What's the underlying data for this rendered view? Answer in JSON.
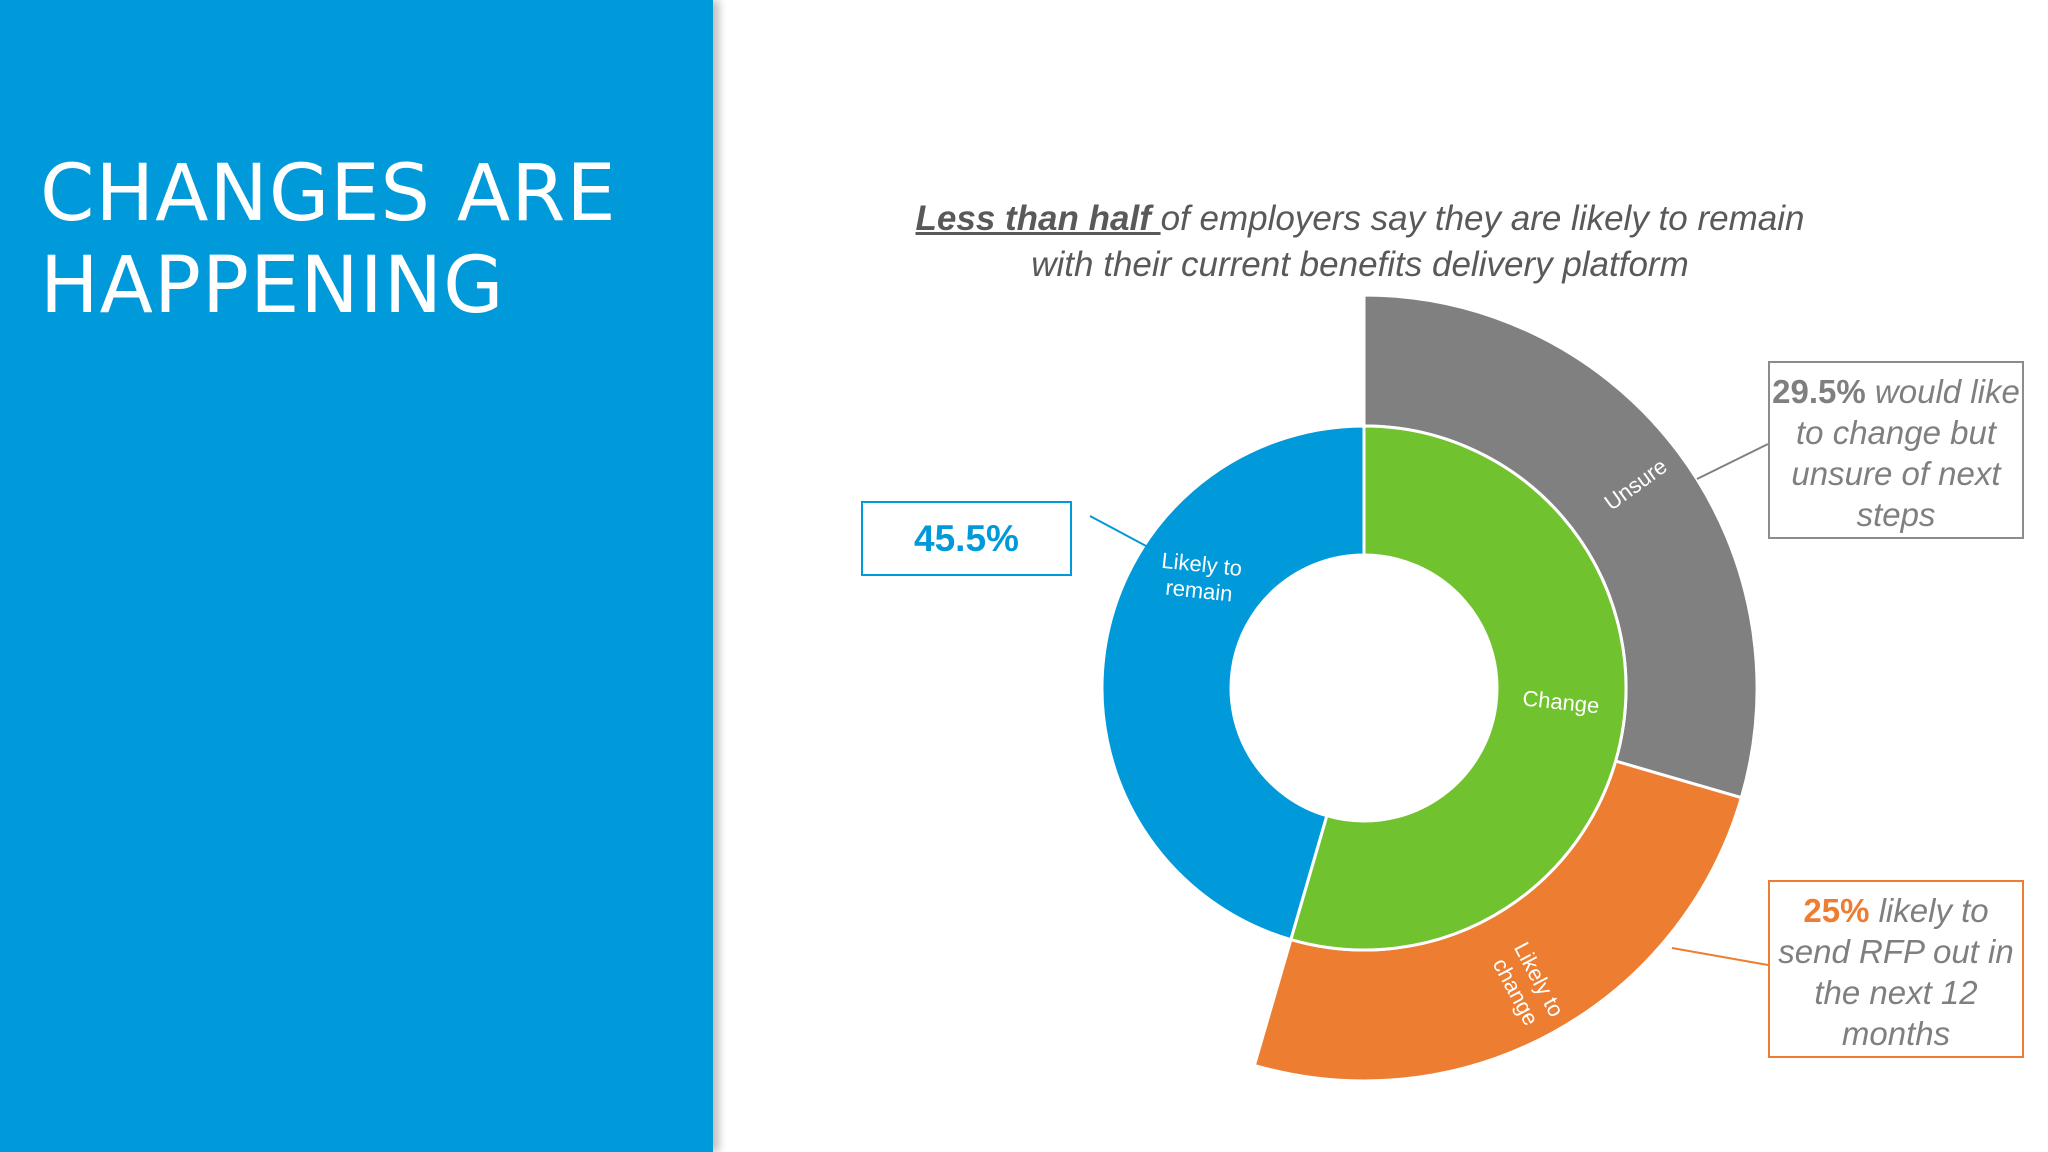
{
  "slide": {
    "title_line1": "CHANGES ARE",
    "title_line2": "HAPPENING"
  },
  "subtitle": {
    "emphasis": "Less than half ",
    "rest": "of employers say they are likely to remain with their current benefits delivery platform"
  },
  "colors": {
    "panel": "#0099D9",
    "remain": "#0099D9",
    "change": "#70C32E",
    "unsure": "#808080",
    "rfp": "#ED7D31"
  },
  "chart_data": {
    "type": "sunburst",
    "inner_ring": [
      {
        "name": "remain",
        "label_lines": [
          "Likely to",
          "remain"
        ],
        "value": 45.5
      },
      {
        "name": "change",
        "label_lines": [
          "Change"
        ],
        "value": 54.5
      }
    ],
    "outer_ring": [
      {
        "name": "unsure",
        "parent": "change",
        "label_lines": [
          "Unsure"
        ],
        "value": 29.5
      },
      {
        "name": "rfp",
        "parent": "change",
        "label_lines": [
          "Likely to",
          "change"
        ],
        "value": 25
      }
    ]
  },
  "callouts": {
    "remain": {
      "pct": "45.5%"
    },
    "unsure": {
      "pct": "29.5%",
      "text": " would like to change but unsure of next steps"
    },
    "rfp": {
      "pct": "25%",
      "text": " likely to send RFP out in the next 12 months"
    }
  }
}
